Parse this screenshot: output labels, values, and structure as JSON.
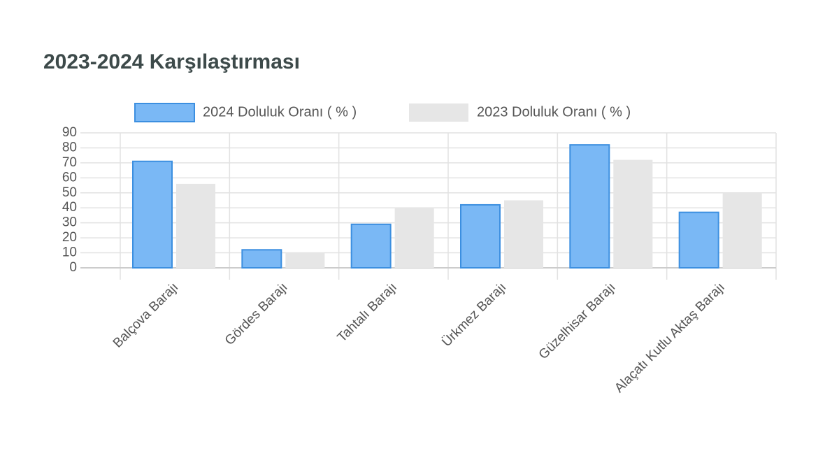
{
  "chart_data": {
    "type": "bar",
    "title": "2023-2024 Karşılaştırması",
    "categories": [
      "Balçova Barajı",
      "Gördes Barajı",
      "Tahtalı Barajı",
      "Ürkmez Barajı",
      "Güzelhisar Barajı",
      "Alaçatı Kutlu Aktaş Barajı"
    ],
    "series": [
      {
        "name": "2024 Doluluk Oranı ( % )",
        "color": "#7ab8f5",
        "values": [
          71,
          12,
          29,
          42,
          82,
          37
        ]
      },
      {
        "name": "2023 Doluluk Oranı ( % )",
        "color": "#e6e6e6",
        "values": [
          56,
          10,
          40,
          45,
          72,
          50
        ]
      }
    ],
    "ylim": [
      0,
      90
    ],
    "yticks": [
      0,
      10,
      20,
      30,
      40,
      50,
      60,
      70,
      80,
      90
    ],
    "grid": true,
    "legend": "top"
  }
}
